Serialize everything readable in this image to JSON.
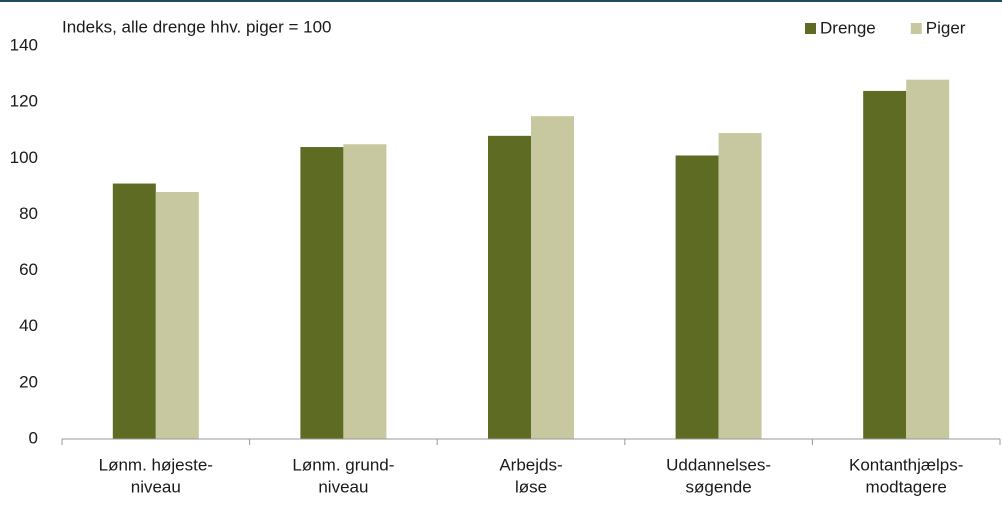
{
  "chart_data": {
    "type": "bar",
    "title": "Indeks, alle drenge hhv. piger = 100",
    "categories": [
      [
        "Lønm. højeste-",
        "niveau"
      ],
      [
        "Lønm. grund-",
        "niveau"
      ],
      [
        "Arbejds-",
        "løse"
      ],
      [
        "Uddannelses-",
        "søgende"
      ],
      [
        "Kontanthjælps-",
        "modtagere"
      ]
    ],
    "series": [
      {
        "name": "Drenge",
        "color": "#5e6b22",
        "values": [
          91,
          104,
          108,
          101,
          124
        ]
      },
      {
        "name": "Piger",
        "color": "#c8c8a0",
        "values": [
          88,
          105,
          115,
          109,
          128
        ]
      }
    ],
    "ylim": [
      0,
      140
    ],
    "yticks": [
      0,
      20,
      40,
      60,
      80,
      100,
      120,
      140
    ],
    "grid": false,
    "legend": "top-right"
  }
}
